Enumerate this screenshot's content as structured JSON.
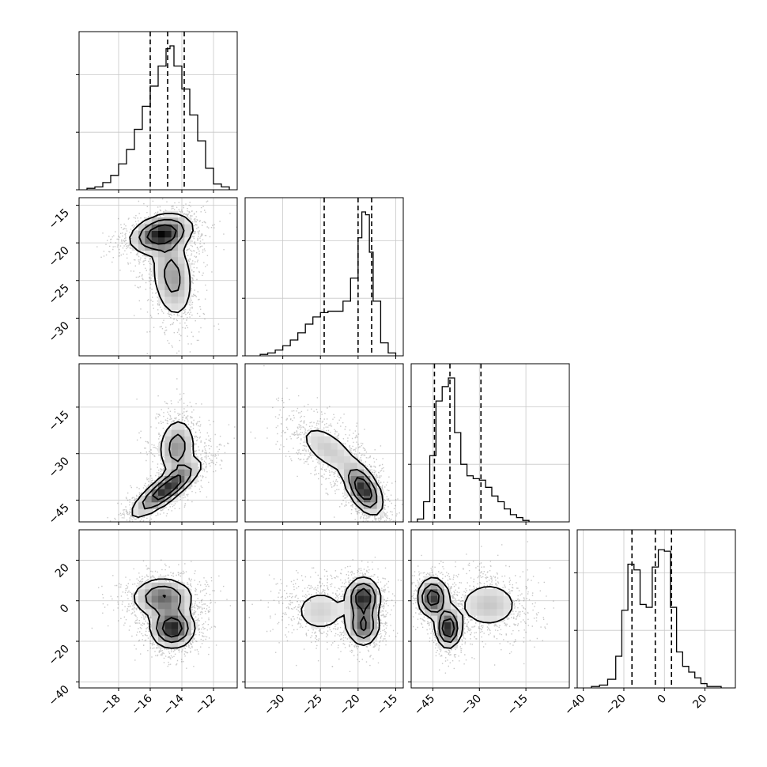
{
  "chart_data": {
    "type": "corner",
    "title": "",
    "n_params": 4,
    "grid": true,
    "params": [
      {
        "range": [
          -20.5,
          -10.5
        ],
        "ticks": [
          -18,
          -16,
          -14,
          -12
        ],
        "tick_labels": [
          "−18",
          "−16",
          "−14",
          "−12"
        ],
        "quantiles": [
          -16.0,
          -14.9,
          -13.85
        ],
        "hist_edges": [
          -20.0,
          -19.5,
          -19.0,
          -18.5,
          -18.0,
          -17.5,
          -17.0,
          -16.5,
          -16.0,
          -15.5,
          -15.0,
          -14.75,
          -14.5,
          -14.0,
          -13.5,
          -13.0,
          -12.5,
          -12.0,
          -11.5,
          -11.0
        ],
        "hist_counts": [
          0.01,
          0.02,
          0.05,
          0.1,
          0.18,
          0.28,
          0.42,
          0.58,
          0.72,
          0.86,
          0.98,
          1.0,
          0.86,
          0.7,
          0.52,
          0.34,
          0.15,
          0.04,
          0.02
        ]
      },
      {
        "range": [
          -35.0,
          -14.0
        ],
        "ticks": [
          -30,
          -25,
          -20,
          -15
        ],
        "tick_labels": [
          "−30",
          "−25",
          "−20",
          "−15"
        ],
        "quantiles": [
          -24.5,
          -20.0,
          -18.2
        ],
        "hist_edges": [
          -33.0,
          -32.0,
          -31.0,
          -30.0,
          -29.0,
          -28.0,
          -27.0,
          -26.0,
          -25.0,
          -24.0,
          -23.0,
          -22.0,
          -21.0,
          -20.0,
          -19.5,
          -19.0,
          -18.5,
          -18.0,
          -17.0,
          -16.0,
          -15.0
        ],
        "hist_counts": [
          0.01,
          0.02,
          0.04,
          0.07,
          0.11,
          0.16,
          0.22,
          0.27,
          0.3,
          0.31,
          0.31,
          0.38,
          0.54,
          0.82,
          1.0,
          0.98,
          0.72,
          0.38,
          0.09,
          0.02
        ]
      },
      {
        "range": [
          -52.0,
          -1.0
        ],
        "ticks": [
          -45,
          -30,
          -15
        ],
        "tick_labels": [
          "−45",
          "−30",
          "−15"
        ],
        "quantiles": [
          -44.5,
          -39.5,
          -29.5
        ],
        "hist_edges": [
          -50.0,
          -48.0,
          -46.0,
          -44.0,
          -42.0,
          -40.0,
          -38.0,
          -36.0,
          -34.0,
          -32.0,
          -30.0,
          -28.0,
          -26.0,
          -24.0,
          -22.0,
          -20.0,
          -18.0,
          -16.0,
          -14.0
        ],
        "hist_counts": [
          0.02,
          0.14,
          0.46,
          0.84,
          0.94,
          1.0,
          0.62,
          0.4,
          0.32,
          0.3,
          0.29,
          0.24,
          0.18,
          0.14,
          0.09,
          0.05,
          0.03,
          0.01
        ]
      },
      {
        "range": [
          -43.0,
          35.0
        ],
        "ticks": [
          -40,
          -20,
          0,
          20
        ],
        "tick_labels": [
          "−40",
          "−20",
          "0",
          "20"
        ],
        "quantiles": [
          -16.0,
          -4.5,
          3.5
        ],
        "hist_edges": [
          -36.0,
          -32.0,
          -28.0,
          -24.0,
          -21.0,
          -18.0,
          -15.0,
          -12.0,
          -9.0,
          -6.0,
          -3.0,
          0.0,
          3.0,
          6.0,
          9.0,
          12.0,
          15.0,
          18.0,
          21.0,
          24.0,
          28.0
        ],
        "hist_counts": [
          0.01,
          0.02,
          0.06,
          0.22,
          0.54,
          0.86,
          0.82,
          0.58,
          0.56,
          0.84,
          0.96,
          0.95,
          0.56,
          0.25,
          0.15,
          0.11,
          0.07,
          0.03,
          0.01,
          0.01
        ]
      }
    ],
    "pairs": [
      {
        "row": 1,
        "col": 0,
        "components": [
          {
            "w": 0.55,
            "mx": -15.3,
            "my": -18.8,
            "sx": 1.0,
            "sy": 1.3,
            "rho": 0.3
          },
          {
            "w": 0.45,
            "mx": -14.6,
            "my": -24.5,
            "sx": 0.7,
            "sy": 3.0,
            "rho": -0.2
          }
        ]
      },
      {
        "row": 2,
        "col": 0,
        "components": [
          {
            "w": 0.62,
            "mx": -15.0,
            "my": -41.5,
            "sx": 1.1,
            "sy": 4.5,
            "rho": 0.85
          },
          {
            "w": 0.38,
            "mx": -14.3,
            "my": -28.0,
            "sx": 0.6,
            "sy": 5.0,
            "rho": 0.1
          }
        ]
      },
      {
        "row": 2,
        "col": 1,
        "components": [
          {
            "w": 0.62,
            "mx": -19.3,
            "my": -41.5,
            "sx": 1.3,
            "sy": 4.2,
            "rho": -0.55
          },
          {
            "w": 0.38,
            "mx": -24.0,
            "my": -28.5,
            "sx": 2.4,
            "sy": 5.0,
            "rho": -0.6
          }
        ]
      },
      {
        "row": 3,
        "col": 0,
        "components": [
          {
            "w": 0.5,
            "mx": -15.2,
            "my": 1.5,
            "sx": 1.0,
            "sy": 5.0,
            "rho": 0.0
          },
          {
            "w": 0.5,
            "mx": -14.6,
            "my": -13.5,
            "sx": 0.7,
            "sy": 5.0,
            "rho": 0.0
          }
        ]
      },
      {
        "row": 3,
        "col": 1,
        "components": [
          {
            "w": 0.4,
            "mx": -19.3,
            "my": 1.5,
            "sx": 1.1,
            "sy": 5.0,
            "rho": 0.0
          },
          {
            "w": 0.3,
            "mx": -19.3,
            "my": -12.5,
            "sx": 1.1,
            "sy": 5.0,
            "rho": 0.0
          },
          {
            "w": 0.3,
            "mx": -25.0,
            "my": -5.0,
            "sx": 2.3,
            "sy": 7.0,
            "rho": 0.0
          }
        ]
      },
      {
        "row": 3,
        "col": 2,
        "components": [
          {
            "w": 0.33,
            "mx": -45.0,
            "my": 1.5,
            "sx": 2.5,
            "sy": 5.0,
            "rho": 0.0
          },
          {
            "w": 0.3,
            "mx": -40.0,
            "my": -13.5,
            "sx": 2.0,
            "sy": 5.0,
            "rho": 0.0
          },
          {
            "w": 0.37,
            "mx": -27.0,
            "my": -2.0,
            "sx": 6.0,
            "sy": 7.0,
            "rho": 0.0
          }
        ]
      }
    ]
  }
}
